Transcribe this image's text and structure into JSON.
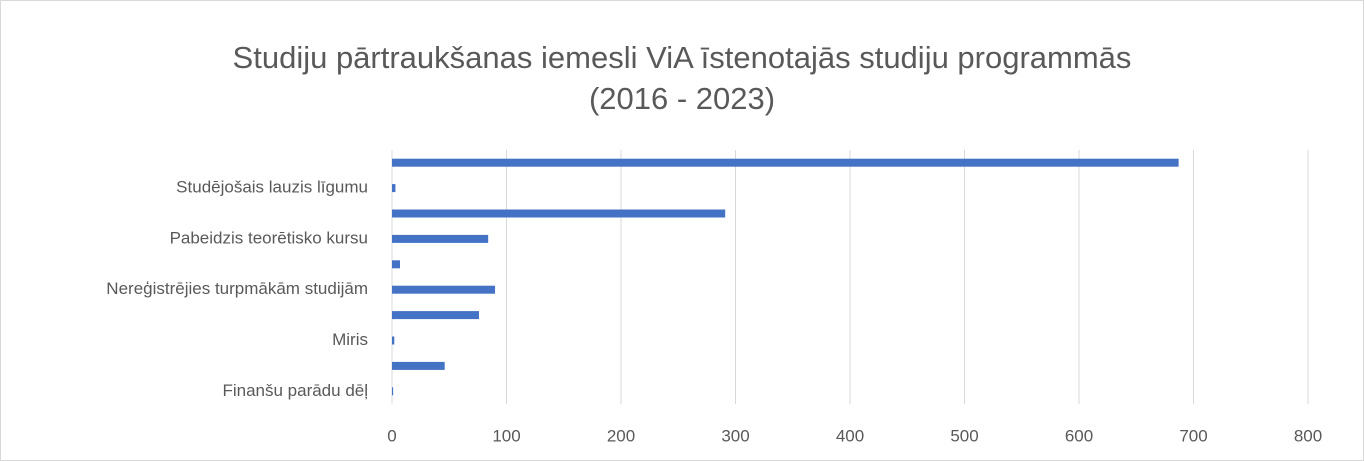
{
  "chart_data": {
    "type": "hbar",
    "title": [
      "Studiju pārtraukšanas iemesli ViA īstenotajās studiju programmās",
      "(2016 - 2023)"
    ],
    "categories": [
      null,
      "Studējošais lauzis līgumu",
      null,
      "Pabeidzis teorētisko kursu",
      null,
      "Nereģistrējies turpmākām studijām",
      null,
      "Miris",
      null,
      "Finanšu parādu dēļ"
    ],
    "values": [
      687,
      3,
      291,
      84,
      7,
      90,
      76,
      2,
      46,
      1
    ],
    "color": "#4472c4",
    "xlim": [
      0,
      800
    ],
    "xticks": [
      0,
      100,
      200,
      300,
      400,
      500,
      600,
      700,
      800
    ],
    "grid": true
  }
}
